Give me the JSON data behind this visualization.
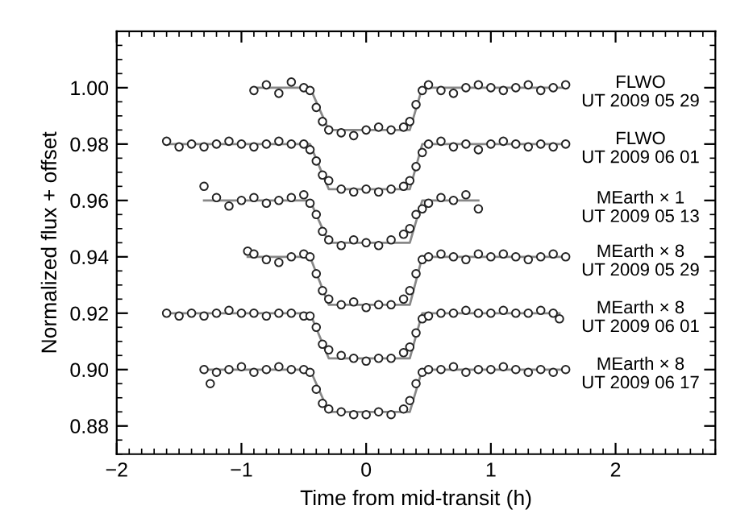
{
  "chart_data": {
    "type": "scatter",
    "xlabel": "Time from mid-transit (h)",
    "ylabel": "Normalized flux + offset",
    "xlim": [
      -2,
      2.8
    ],
    "xticks": [
      {
        "value": -2,
        "label": "−2"
      },
      {
        "value": -1,
        "label": "−1"
      },
      0,
      1,
      2
    ],
    "ylim": [
      0.87,
      1.02
    ],
    "yticks": [
      {
        "value": 0.88,
        "label": "0.88"
      },
      {
        "value": 0.9,
        "label": "0.90"
      },
      {
        "value": 0.92,
        "label": "0.92"
      },
      {
        "value": 0.94,
        "label": "0.94"
      },
      {
        "value": 0.96,
        "label": "0.96"
      },
      {
        "value": 0.98,
        "label": "0.98"
      },
      {
        "value": 1.0,
        "label": "1.00"
      }
    ],
    "marker": "circle",
    "grid": false,
    "legend": false,
    "series": [
      {
        "type": "line",
        "marker": "none",
        "color": "#888888",
        "x": [
          -0.9,
          -0.45,
          -0.3,
          0.35,
          0.45,
          1.6
        ],
        "values": [
          1.0,
          1.0,
          0.985,
          0.985,
          1.0,
          1.0
        ]
      },
      {
        "type": "line",
        "marker": "none",
        "color": "#888888",
        "x": [
          -1.6,
          -0.45,
          -0.3,
          0.35,
          0.45,
          1.6
        ],
        "values": [
          0.98,
          0.98,
          0.964,
          0.964,
          0.98,
          0.98
        ]
      },
      {
        "type": "line",
        "marker": "none",
        "color": "#888888",
        "x": [
          -1.3,
          -0.45,
          -0.3,
          0.35,
          0.45,
          0.9
        ],
        "values": [
          0.96,
          0.96,
          0.945,
          0.945,
          0.96,
          0.96
        ]
      },
      {
        "type": "line",
        "marker": "none",
        "color": "#888888",
        "x": [
          -0.95,
          -0.45,
          -0.3,
          0.35,
          0.45,
          1.6
        ],
        "values": [
          0.94,
          0.94,
          0.923,
          0.923,
          0.94,
          0.94
        ]
      },
      {
        "type": "line",
        "marker": "none",
        "color": "#888888",
        "x": [
          -1.6,
          -0.45,
          -0.3,
          0.35,
          0.45,
          1.55
        ],
        "values": [
          0.92,
          0.92,
          0.904,
          0.904,
          0.92,
          0.92
        ]
      },
      {
        "type": "line",
        "marker": "none",
        "color": "#888888",
        "x": [
          -1.3,
          -0.45,
          -0.3,
          0.35,
          0.45,
          1.6
        ],
        "values": [
          0.9,
          0.9,
          0.885,
          0.885,
          0.9,
          0.9
        ]
      },
      {
        "name": "FLWO\nUT 2009 05 29",
        "color": "#222222",
        "x": [
          -0.9,
          -0.8,
          -0.7,
          -0.6,
          -0.5,
          -0.45,
          -0.4,
          -0.35,
          -0.3,
          -0.2,
          -0.1,
          0,
          0.1,
          0.2,
          0.3,
          0.35,
          0.4,
          0.45,
          0.5,
          0.6,
          0.7,
          0.8,
          0.9,
          1.0,
          1.1,
          1.2,
          1.3,
          1.4,
          1.5,
          1.6
        ],
        "values": [
          0.999,
          1.001,
          0.998,
          1.002,
          1.0,
          0.999,
          0.993,
          0.988,
          0.985,
          0.984,
          0.983,
          0.985,
          0.986,
          0.985,
          0.986,
          0.988,
          0.994,
          0.999,
          1.001,
          0.999,
          0.998,
          1.0,
          1.001,
          1.0,
          0.999,
          1.0,
          1.001,
          0.999,
          1.0,
          1.001
        ]
      },
      {
        "name": "FLWO\nUT 2009 06 01",
        "color": "#222222",
        "x": [
          -1.6,
          -1.5,
          -1.4,
          -1.3,
          -1.2,
          -1.1,
          -1.0,
          -0.9,
          -0.8,
          -0.7,
          -0.6,
          -0.5,
          -0.45,
          -0.4,
          -0.35,
          -0.3,
          -0.2,
          -0.1,
          0,
          0.1,
          0.2,
          0.3,
          0.35,
          0.4,
          0.45,
          0.5,
          0.6,
          0.7,
          0.8,
          0.9,
          1.0,
          1.1,
          1.2,
          1.3,
          1.4,
          1.5,
          1.6
        ],
        "values": [
          0.981,
          0.979,
          0.98,
          0.979,
          0.98,
          0.981,
          0.98,
          0.979,
          0.98,
          0.981,
          0.98,
          0.98,
          0.978,
          0.974,
          0.969,
          0.967,
          0.964,
          0.963,
          0.964,
          0.963,
          0.964,
          0.965,
          0.967,
          0.972,
          0.977,
          0.98,
          0.981,
          0.979,
          0.98,
          0.978,
          0.98,
          0.981,
          0.98,
          0.979,
          0.98,
          0.979,
          0.98
        ]
      },
      {
        "name": "MEarth × 1\nUT 2009 05 13",
        "color": "#222222",
        "x": [
          -1.3,
          -1.2,
          -1.1,
          -1.0,
          -0.9,
          -0.8,
          -0.7,
          -0.6,
          -0.5,
          -0.45,
          -0.4,
          -0.35,
          -0.3,
          -0.2,
          -0.1,
          0,
          0.1,
          0.2,
          0.3,
          0.35,
          0.4,
          0.45,
          0.5,
          0.6,
          0.7,
          0.8,
          0.9
        ],
        "values": [
          0.965,
          0.961,
          0.958,
          0.96,
          0.961,
          0.959,
          0.96,
          0.961,
          0.962,
          0.959,
          0.955,
          0.949,
          0.946,
          0.944,
          0.946,
          0.945,
          0.944,
          0.946,
          0.948,
          0.95,
          0.955,
          0.957,
          0.959,
          0.961,
          0.96,
          0.962,
          0.957
        ]
      },
      {
        "name": "MEarth × 8\nUT 2009 05 29",
        "color": "#222222",
        "x": [
          -0.95,
          -0.9,
          -0.8,
          -0.7,
          -0.6,
          -0.5,
          -0.45,
          -0.4,
          -0.35,
          -0.3,
          -0.2,
          -0.1,
          0,
          0.1,
          0.2,
          0.3,
          0.35,
          0.4,
          0.45,
          0.5,
          0.6,
          0.7,
          0.8,
          0.9,
          1.0,
          1.1,
          1.2,
          1.3,
          1.4,
          1.5,
          1.6
        ],
        "values": [
          0.942,
          0.941,
          0.939,
          0.938,
          0.94,
          0.941,
          0.94,
          0.934,
          0.928,
          0.925,
          0.923,
          0.924,
          0.922,
          0.923,
          0.923,
          0.925,
          0.928,
          0.934,
          0.939,
          0.94,
          0.941,
          0.94,
          0.939,
          0.941,
          0.94,
          0.941,
          0.94,
          0.939,
          0.94,
          0.941,
          0.94
        ]
      },
      {
        "name": "MEarth × 8\nUT 2009 06 01",
        "color": "#222222",
        "x": [
          -1.6,
          -1.5,
          -1.4,
          -1.3,
          -1.2,
          -1.1,
          -1.0,
          -0.9,
          -0.8,
          -0.7,
          -0.6,
          -0.5,
          -0.45,
          -0.4,
          -0.35,
          -0.3,
          -0.2,
          -0.1,
          0,
          0.1,
          0.2,
          0.3,
          0.35,
          0.4,
          0.45,
          0.5,
          0.6,
          0.7,
          0.8,
          0.9,
          1.0,
          1.1,
          1.2,
          1.3,
          1.4,
          1.5,
          1.55
        ],
        "values": [
          0.92,
          0.919,
          0.92,
          0.919,
          0.92,
          0.921,
          0.92,
          0.92,
          0.919,
          0.92,
          0.92,
          0.919,
          0.919,
          0.915,
          0.909,
          0.907,
          0.905,
          0.904,
          0.903,
          0.904,
          0.904,
          0.906,
          0.908,
          0.913,
          0.918,
          0.919,
          0.92,
          0.92,
          0.921,
          0.92,
          0.92,
          0.921,
          0.92,
          0.92,
          0.921,
          0.92,
          0.918
        ]
      },
      {
        "name": "MEarth × 8\nUT 2009 06 17",
        "color": "#222222",
        "x": [
          -1.3,
          -1.25,
          -1.2,
          -1.1,
          -1.0,
          -0.9,
          -0.8,
          -0.7,
          -0.6,
          -0.5,
          -0.45,
          -0.4,
          -0.35,
          -0.3,
          -0.2,
          -0.1,
          0,
          0.1,
          0.2,
          0.3,
          0.35,
          0.4,
          0.45,
          0.5,
          0.6,
          0.7,
          0.8,
          0.9,
          1.0,
          1.1,
          1.2,
          1.3,
          1.4,
          1.5,
          1.6
        ],
        "values": [
          0.9,
          0.895,
          0.899,
          0.9,
          0.901,
          0.899,
          0.9,
          0.901,
          0.9,
          0.9,
          0.899,
          0.893,
          0.888,
          0.886,
          0.885,
          0.884,
          0.884,
          0.885,
          0.884,
          0.886,
          0.889,
          0.895,
          0.899,
          0.9,
          0.9,
          0.901,
          0.899,
          0.9,
          0.9,
          0.901,
          0.9,
          0.899,
          0.9,
          0.899,
          0.9
        ]
      }
    ]
  }
}
